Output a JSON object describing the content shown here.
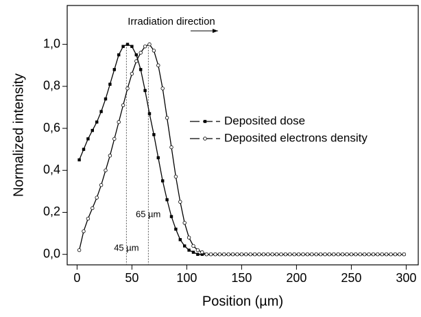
{
  "chart_data": {
    "type": "line",
    "annotation": "Irradiation direction",
    "x_label": "Position (µm)",
    "y_label": "Normalized intensity",
    "x": [
      2,
      6,
      10,
      14,
      18,
      22,
      26,
      30,
      34,
      38,
      42,
      46,
      50,
      54,
      58,
      62,
      66,
      70,
      74,
      78,
      82,
      86,
      90,
      94,
      98,
      102,
      106,
      110,
      114,
      118,
      122,
      126,
      130,
      134,
      138,
      142,
      146,
      150,
      154,
      158,
      162,
      166,
      170,
      174,
      178,
      182,
      186,
      190,
      194,
      198,
      202,
      206,
      210,
      214,
      218,
      222,
      226,
      230,
      234,
      238,
      242,
      246,
      250,
      254,
      258,
      262,
      266,
      270,
      274,
      278,
      282,
      286,
      290,
      294,
      298
    ],
    "series": [
      {
        "name": "Deposited dose",
        "color": "#000000",
        "marker": "square",
        "values": [
          0.45,
          0.5,
          0.55,
          0.59,
          0.63,
          0.68,
          0.74,
          0.81,
          0.88,
          0.95,
          0.99,
          1.0,
          0.99,
          0.95,
          0.88,
          0.78,
          0.67,
          0.57,
          0.46,
          0.35,
          0.26,
          0.18,
          0.12,
          0.07,
          0.04,
          0.02,
          0.01,
          0,
          0,
          0,
          0,
          0,
          0,
          0,
          0,
          0,
          0,
          0,
          0,
          0,
          0,
          0,
          0,
          0,
          0,
          0,
          0,
          0,
          0,
          0,
          0,
          0,
          0,
          0,
          0,
          0,
          0,
          0,
          0,
          0,
          0,
          0,
          0,
          0,
          0,
          0,
          0,
          0,
          0,
          0,
          0,
          0,
          0,
          0,
          0
        ]
      },
      {
        "name": "Deposited electrons density",
        "color": "#000000",
        "marker": "circle",
        "values": [
          0.02,
          0.11,
          0.17,
          0.22,
          0.27,
          0.33,
          0.4,
          0.47,
          0.55,
          0.63,
          0.71,
          0.79,
          0.86,
          0.92,
          0.96,
          0.99,
          1.0,
          0.97,
          0.9,
          0.79,
          0.65,
          0.51,
          0.37,
          0.25,
          0.15,
          0.08,
          0.04,
          0.02,
          0.01,
          0,
          0,
          0,
          0,
          0,
          0,
          0,
          0,
          0,
          0,
          0,
          0,
          0,
          0,
          0,
          0,
          0,
          0,
          0,
          0,
          0,
          0,
          0,
          0,
          0,
          0,
          0,
          0,
          0,
          0,
          0,
          0,
          0,
          0,
          0,
          0,
          0,
          0,
          0,
          0,
          0,
          0,
          0,
          0,
          0,
          0
        ]
      }
    ],
    "vlines": [
      {
        "value": 45,
        "label": "45 µm"
      },
      {
        "value": 65,
        "label": "65 µm"
      }
    ],
    "xlim": [
      -9,
      311
    ],
    "ylim": [
      -0.05,
      1.185
    ],
    "xticks": [
      0,
      50,
      100,
      150,
      200,
      250,
      300
    ],
    "yticks": [
      {
        "value": 0,
        "label": "0,0"
      },
      {
        "value": 0.2,
        "label": "0,2"
      },
      {
        "value": 0.4,
        "label": "0,4"
      },
      {
        "value": 0.6,
        "label": "0,6"
      },
      {
        "value": 0.8,
        "label": "0,8"
      },
      {
        "value": 1.0,
        "label": "1,0"
      }
    ],
    "legend": "right",
    "grid": false
  }
}
